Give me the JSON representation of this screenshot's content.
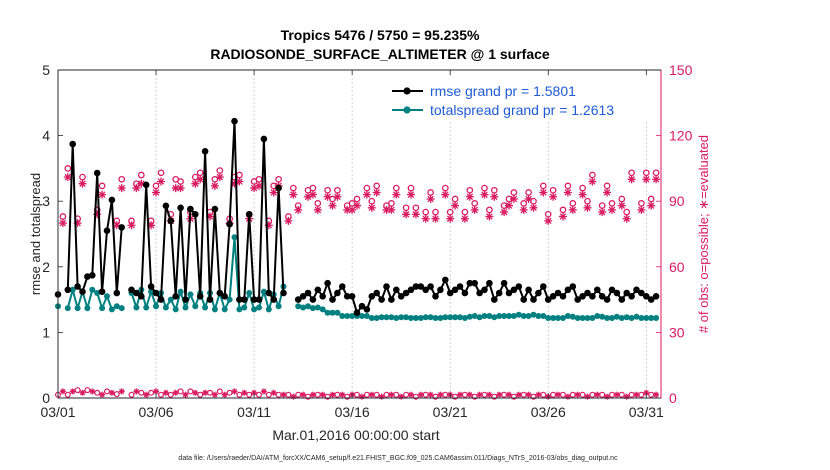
{
  "chart_data": {
    "type": "line",
    "title_line1": "Tropics 5476 / 5750 = 95.235%",
    "title_line2": "RADIOSONDE_SURFACE_ALTIMETER @ 1 surface",
    "xlabel": "Mar.01,2016 00:00:00 start",
    "ylabel_left": "rmse and totalspread",
    "ylabel_right": "# of obs: o=possible; ∗=evaluated",
    "footer": "data file: /Users/raeder/DAI/ATM_forcXX/CAM6_setup/f.e21.FHIST_BGC.f09_025.CAM6assim.011/Diags_NTrS_2016-03/obs_diag_output.nc",
    "x_ticks": [
      {
        "day": 1,
        "label": "03/01"
      },
      {
        "day": 6,
        "label": "03/06"
      },
      {
        "day": 11,
        "label": "03/11"
      },
      {
        "day": 16,
        "label": "03/16"
      },
      {
        "day": 21,
        "label": "03/21"
      },
      {
        "day": 26,
        "label": "03/26"
      },
      {
        "day": 31,
        "label": "03/31"
      }
    ],
    "xlim": [
      1,
      31.75
    ],
    "ylim_left": [
      0,
      5
    ],
    "yticks_left": [
      "0",
      "1",
      "2",
      "3",
      "4",
      "5"
    ],
    "ylim_right": [
      0,
      150
    ],
    "yticks_right": [
      "0",
      "30",
      "60",
      "90",
      "120",
      "150"
    ],
    "legend": [
      {
        "label": "rmse grand pr = 1.5801",
        "color": "#000000"
      },
      {
        "label": "totalspread grand pr = 1.2613",
        "color": "#008080"
      }
    ],
    "colors": {
      "rmse": "#000000",
      "spread": "#008080",
      "obs": "#d81b60",
      "legend_text": "#1f5bd6",
      "right_axis": "#d81b60"
    },
    "series": [
      {
        "name": "rmse",
        "axis": "left",
        "days": [
          1.0,
          1.25,
          1.5,
          1.75,
          2.0,
          2.25,
          2.5,
          2.75,
          3.0,
          3.25,
          3.5,
          3.75,
          4.0,
          4.25,
          4.5,
          4.75,
          5.0,
          5.25,
          5.5,
          5.75,
          6.0,
          6.25,
          6.5,
          6.75,
          7.0,
          7.25,
          7.5,
          7.75,
          8.0,
          8.25,
          8.5,
          8.75,
          9.0,
          9.25,
          9.5,
          9.75,
          10.0,
          10.25,
          10.5,
          10.75,
          11.0,
          11.25,
          11.5,
          11.75,
          12.0,
          12.25,
          12.5,
          12.75,
          13.0,
          13.25,
          13.5,
          13.75,
          14.0,
          14.25,
          14.5,
          14.75,
          15.0,
          15.25,
          15.5,
          15.75,
          16.0,
          16.25,
          16.5,
          16.75,
          17.0,
          17.25,
          17.5,
          17.75,
          18.0,
          18.25,
          18.5,
          18.75,
          19.0,
          19.25,
          19.5,
          19.75,
          20.0,
          20.25,
          20.5,
          20.75,
          21.0,
          21.25,
          21.5,
          21.75,
          22.0,
          22.25,
          22.5,
          22.75,
          23.0,
          23.25,
          23.5,
          23.75,
          24.0,
          24.25,
          24.5,
          24.75,
          25.0,
          25.25,
          25.5,
          25.75,
          26.0,
          26.25,
          26.5,
          26.75,
          27.0,
          27.25,
          27.5,
          27.75,
          28.0,
          28.25,
          28.5,
          28.75,
          29.0,
          29.25,
          29.5,
          29.75,
          30.0,
          30.25,
          30.5,
          30.75,
          31.0,
          31.25,
          31.5
        ],
        "values": [
          1.58,
          null,
          1.65,
          3.87,
          1.7,
          1.62,
          1.85,
          1.87,
          3.43,
          1.62,
          2.55,
          3.02,
          1.6,
          2.6,
          null,
          1.65,
          1.6,
          1.55,
          3.25,
          1.7,
          1.6,
          1.5,
          2.93,
          2.7,
          1.55,
          2.9,
          1.5,
          2.88,
          2.8,
          1.55,
          3.76,
          1.5,
          2.88,
          1.6,
          1.55,
          2.65,
          4.22,
          1.5,
          1.5,
          2.8,
          1.5,
          1.5,
          3.95,
          1.6,
          1.5,
          3.2,
          1.6,
          null,
          null,
          1.5,
          1.55,
          1.6,
          1.5,
          1.65,
          1.55,
          1.75,
          1.5,
          1.6,
          1.7,
          1.55,
          1.55,
          1.3,
          1.4,
          1.35,
          1.55,
          1.6,
          1.5,
          1.7,
          1.5,
          1.65,
          1.55,
          1.6,
          1.65,
          1.7,
          1.7,
          1.65,
          1.7,
          1.55,
          1.65,
          1.8,
          1.6,
          1.65,
          1.7,
          1.6,
          1.75,
          1.75,
          1.6,
          1.65,
          1.75,
          1.5,
          1.6,
          1.75,
          1.6,
          1.65,
          1.7,
          1.5,
          1.65,
          1.5,
          1.6,
          1.7,
          1.5,
          1.55,
          1.6,
          1.55,
          1.65,
          1.7,
          1.5,
          1.55,
          1.6,
          1.55,
          1.65,
          1.55,
          1.5,
          1.65,
          1.6,
          1.5,
          1.6,
          1.55,
          1.65,
          1.6,
          1.55,
          1.5,
          1.55
        ]
      },
      {
        "name": "totalspread",
        "axis": "left",
        "days": [
          1.0,
          1.25,
          1.5,
          1.75,
          2.0,
          2.25,
          2.5,
          2.75,
          3.0,
          3.25,
          3.5,
          3.75,
          4.0,
          4.25,
          4.5,
          4.75,
          5.0,
          5.25,
          5.5,
          5.75,
          6.0,
          6.25,
          6.5,
          6.75,
          7.0,
          7.25,
          7.5,
          7.75,
          8.0,
          8.25,
          8.5,
          8.75,
          9.0,
          9.25,
          9.5,
          9.75,
          10.0,
          10.25,
          10.5,
          10.75,
          11.0,
          11.25,
          11.5,
          11.75,
          12.0,
          12.25,
          12.5,
          12.75,
          13.0,
          13.25,
          13.5,
          13.75,
          14.0,
          14.25,
          14.5,
          14.75,
          15.0,
          15.25,
          15.5,
          15.75,
          16.0,
          16.25,
          16.5,
          16.75,
          17.0,
          17.25,
          17.5,
          17.75,
          18.0,
          18.25,
          18.5,
          18.75,
          19.0,
          19.25,
          19.5,
          19.75,
          20.0,
          20.25,
          20.5,
          20.75,
          21.0,
          21.25,
          21.5,
          21.75,
          22.0,
          22.25,
          22.5,
          22.75,
          23.0,
          23.25,
          23.5,
          23.75,
          24.0,
          24.25,
          24.5,
          24.75,
          25.0,
          25.25,
          25.5,
          25.75,
          26.0,
          26.25,
          26.5,
          26.75,
          27.0,
          27.25,
          27.5,
          27.75,
          28.0,
          28.25,
          28.5,
          28.75,
          29.0,
          29.25,
          29.5,
          29.75,
          30.0,
          30.25,
          30.5,
          30.75,
          31.0,
          31.25,
          31.5
        ],
        "values": [
          1.4,
          null,
          1.37,
          1.65,
          1.37,
          1.62,
          1.37,
          1.65,
          1.6,
          1.37,
          1.55,
          1.35,
          1.4,
          1.37,
          null,
          1.6,
          1.38,
          1.65,
          1.38,
          1.62,
          1.4,
          1.6,
          1.38,
          1.5,
          1.35,
          1.62,
          1.38,
          1.58,
          1.4,
          1.6,
          1.38,
          1.6,
          1.35,
          1.6,
          1.35,
          1.5,
          2.45,
          1.35,
          1.38,
          1.6,
          1.35,
          1.38,
          1.62,
          1.35,
          1.58,
          1.4,
          1.7,
          null,
          null,
          1.4,
          1.38,
          1.4,
          1.37,
          1.38,
          1.35,
          1.3,
          1.3,
          1.3,
          1.25,
          1.25,
          1.25,
          1.25,
          1.25,
          1.25,
          1.22,
          1.22,
          1.23,
          1.23,
          1.23,
          1.22,
          1.23,
          1.23,
          1.22,
          1.22,
          1.22,
          1.23,
          1.23,
          1.22,
          1.22,
          1.23,
          1.23,
          1.23,
          1.23,
          1.22,
          1.24,
          1.25,
          1.23,
          1.25,
          1.25,
          1.23,
          1.25,
          1.25,
          1.25,
          1.25,
          1.27,
          1.25,
          1.25,
          1.27,
          1.25,
          1.25,
          1.22,
          1.22,
          1.22,
          1.22,
          1.25,
          1.24,
          1.22,
          1.22,
          1.22,
          1.22,
          1.25,
          1.24,
          1.22,
          1.22,
          1.24,
          1.22,
          1.23,
          1.22,
          1.24,
          1.22,
          1.22,
          1.22,
          1.22
        ]
      },
      {
        "name": "obs_possible",
        "axis": "right",
        "marker": "circle",
        "days": [
          1.25,
          1.5,
          2.0,
          2.25,
          3.0,
          3.25,
          4.0,
          4.25,
          4.75,
          5.0,
          5.25,
          5.75,
          6.0,
          6.25,
          6.75,
          7.0,
          7.25,
          7.75,
          8.0,
          8.25,
          8.75,
          9.0,
          9.25,
          9.75,
          10.0,
          10.25,
          10.75,
          11.0,
          11.25,
          11.75,
          12.0,
          12.25,
          12.75,
          13.0,
          13.25,
          13.75,
          14.0,
          14.25,
          14.75,
          15.0,
          15.25,
          15.75,
          16.0,
          16.25,
          16.75,
          17.0,
          17.25,
          17.75,
          18.0,
          18.25,
          18.75,
          19.0,
          19.25,
          19.75,
          20.0,
          20.25,
          20.75,
          21.0,
          21.25,
          21.75,
          22.0,
          22.25,
          22.75,
          23.0,
          23.25,
          23.75,
          24.0,
          24.25,
          24.75,
          25.0,
          25.25,
          25.75,
          26.0,
          26.25,
          26.75,
          27.0,
          27.25,
          27.75,
          28.0,
          28.25,
          28.75,
          29.0,
          29.25,
          29.75,
          30.0,
          30.25,
          30.75,
          31.0,
          31.25,
          31.5
        ],
        "values": [
          83,
          105,
          82,
          101,
          86,
          97,
          81,
          100,
          81,
          98,
          102,
          81,
          97,
          103,
          84,
          100,
          99,
          85,
          101,
          103,
          85,
          100,
          104,
          82,
          101,
          102,
          84,
          99,
          100,
          81,
          97,
          100,
          83,
          96,
          88,
          95,
          96,
          89,
          95,
          91,
          95,
          88,
          89,
          91,
          96,
          90,
          97,
          88,
          89,
          96,
          87,
          96,
          87,
          85,
          94,
          85,
          96,
          85,
          91,
          85,
          95,
          89,
          96,
          86,
          95,
          88,
          91,
          94,
          89,
          94,
          90,
          97,
          84,
          95,
          86,
          97,
          89,
          96,
          90,
          102,
          88,
          97,
          89,
          91,
          85,
          103,
          89,
          103,
          91,
          103
        ]
      },
      {
        "name": "obs_evaluated",
        "axis": "right",
        "marker": "asterisk",
        "days": [
          1.25,
          1.5,
          2.0,
          2.25,
          3.0,
          3.25,
          4.0,
          4.25,
          4.75,
          5.0,
          5.25,
          5.75,
          6.0,
          6.25,
          6.75,
          7.0,
          7.25,
          7.75,
          8.0,
          8.25,
          8.75,
          9.0,
          9.25,
          9.75,
          10.0,
          10.25,
          10.75,
          11.0,
          11.25,
          11.75,
          12.0,
          12.25,
          12.75,
          13.0,
          13.25,
          13.75,
          14.0,
          14.25,
          14.75,
          15.0,
          15.25,
          15.75,
          16.0,
          16.25,
          16.75,
          17.0,
          17.25,
          17.75,
          18.0,
          18.25,
          18.75,
          19.0,
          19.25,
          19.75,
          20.0,
          20.25,
          20.75,
          21.0,
          21.25,
          21.75,
          22.0,
          22.25,
          22.75,
          23.0,
          23.25,
          23.75,
          24.0,
          24.25,
          24.75,
          25.0,
          25.25,
          25.75,
          26.0,
          26.25,
          26.75,
          27.0,
          27.25,
          27.75,
          28.0,
          28.25,
          28.75,
          29.0,
          29.25,
          29.75,
          30.0,
          30.25,
          30.75,
          31.0,
          31.25,
          31.5
        ],
        "values": [
          80,
          101,
          80,
          98,
          84,
          93,
          79,
          96,
          79,
          96,
          98,
          79,
          94,
          99,
          81,
          96,
          96,
          82,
          98,
          100,
          83,
          97,
          101,
          80,
          98,
          99,
          82,
          96,
          97,
          79,
          94,
          97,
          81,
          93,
          86,
          92,
          93,
          86,
          92,
          88,
          92,
          86,
          86,
          88,
          93,
          87,
          94,
          86,
          86,
          93,
          84,
          93,
          84,
          82,
          91,
          82,
          93,
          82,
          88,
          82,
          92,
          86,
          93,
          83,
          92,
          85,
          88,
          91,
          86,
          91,
          87,
          94,
          81,
          92,
          83,
          94,
          86,
          93,
          87,
          99,
          85,
          94,
          86,
          88,
          82,
          100,
          86,
          100,
          88,
          100
        ]
      },
      {
        "name": "obs_bottom",
        "axis": "left",
        "marker": "mixed",
        "days": [
          1.0,
          1.25,
          1.5,
          1.75,
          2.0,
          2.25,
          2.5,
          2.75,
          3.0,
          3.25,
          3.5,
          3.75,
          4.0,
          4.25,
          4.75,
          5.0,
          5.25,
          5.5,
          5.75,
          6.0,
          6.25,
          6.5,
          6.75,
          7.0,
          7.25,
          7.5,
          7.75,
          8.0,
          8.25,
          8.5,
          8.75,
          9.0,
          9.25,
          9.5,
          9.75,
          10.0,
          10.25,
          10.5,
          10.75,
          11.0,
          11.25,
          11.5,
          11.75,
          12.0,
          12.25,
          12.5,
          12.75,
          13.0,
          13.25,
          13.5,
          13.75,
          14.0,
          14.25,
          14.5,
          14.75,
          15.0,
          15.25,
          15.5,
          15.75,
          16.0,
          16.25,
          16.5,
          16.75,
          17.0,
          17.25,
          17.5,
          17.75,
          18.0,
          18.25,
          18.5,
          18.75,
          19.0,
          19.25,
          19.5,
          19.75,
          20.0,
          20.25,
          20.5,
          20.75,
          21.0,
          21.25,
          21.5,
          21.75,
          22.0,
          22.25,
          22.5,
          22.75,
          23.0,
          23.25,
          23.5,
          23.75,
          24.0,
          24.25,
          24.5,
          24.75,
          25.0,
          25.25,
          25.5,
          25.75,
          26.0,
          26.25,
          26.5,
          26.75,
          27.0,
          27.25,
          27.5,
          27.75,
          28.0,
          28.25,
          28.5,
          28.75,
          29.0,
          29.25,
          29.5,
          29.75,
          30.0,
          30.25,
          30.5,
          30.75,
          31.0,
          31.25,
          31.5
        ],
        "values": [
          0.05,
          0.1,
          0.05,
          0.1,
          0.12,
          0.08,
          0.12,
          0.1,
          0.08,
          0.05,
          0.1,
          0.08,
          0.06,
          0.1,
          0.05,
          0.1,
          0.08,
          0.05,
          0.08,
          0.1,
          0.05,
          0.08,
          0.05,
          0.08,
          0.1,
          0.05,
          0.1,
          0.08,
          0.05,
          0.08,
          0.08,
          0.05,
          0.1,
          0.05,
          0.08,
          0.1,
          0.05,
          0.08,
          0.05,
          0.08,
          0.05,
          0.1,
          0.05,
          0.08,
          0.05,
          0.05,
          0.05,
          0.02,
          0.05,
          0.05,
          0.02,
          0.05,
          0.05,
          0.05,
          0.02,
          0.05,
          0.05,
          0.05,
          0.02,
          0.05,
          0.05,
          0.02,
          0.05,
          0.05,
          0.05,
          0.02,
          0.05,
          0.05,
          0.05,
          0.02,
          0.05,
          0.05,
          0.02,
          0.05,
          0.05,
          0.05,
          0.02,
          0.05,
          0.05,
          0.05,
          0.02,
          0.05,
          0.05,
          0.05,
          0.02,
          0.05,
          0.05,
          0.05,
          0.02,
          0.05,
          0.05,
          0.05,
          0.02,
          0.05,
          0.05,
          0.05,
          0.02,
          0.05,
          0.05,
          0.02,
          0.05,
          0.05,
          0.05,
          0.02,
          0.05,
          0.05,
          0.05,
          0.02,
          0.05,
          0.05,
          0.05,
          0.02,
          0.05,
          0.05,
          0.05,
          0.02,
          0.05,
          0.05,
          0.05,
          0.08,
          0.05,
          0.05
        ]
      }
    ]
  }
}
